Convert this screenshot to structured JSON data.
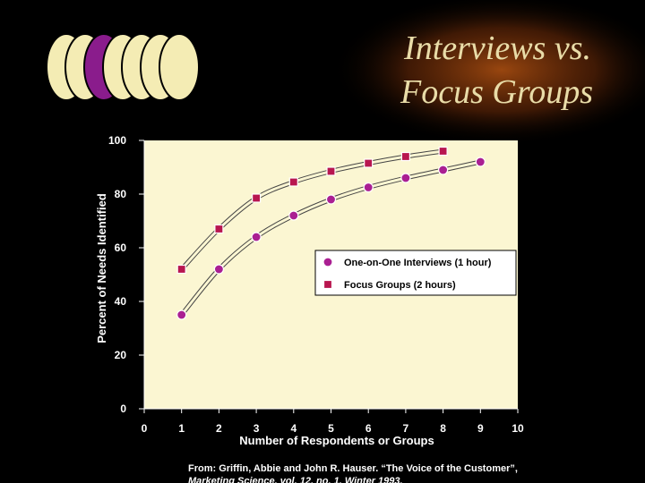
{
  "title_lines": [
    "Interviews vs.",
    "Focus Groups"
  ],
  "chart_data": {
    "type": "line",
    "xlabel": "Number of Respondents or Groups",
    "ylabel": "Percent of Needs Identified",
    "xlim": [
      0,
      10
    ],
    "ylim": [
      0,
      100
    ],
    "x_ticks": [
      "0",
      "1",
      "2",
      "3",
      "4",
      "5",
      "6",
      "7",
      "8",
      "9",
      "10"
    ],
    "y_ticks": [
      "0",
      "20",
      "40",
      "60",
      "80",
      "100"
    ],
    "grid": false,
    "legend": "inside-right",
    "series": [
      {
        "name": "One-on-One Interviews (1 hour)",
        "marker": "circle",
        "color": "#aa1f92",
        "x": [
          1,
          2,
          3,
          4,
          5,
          6,
          7,
          8,
          9
        ],
        "y": [
          35,
          52,
          64,
          72,
          78,
          82.5,
          86,
          89,
          92
        ]
      },
      {
        "name": "Focus Groups (2 hours)",
        "marker": "square",
        "color": "#b8164f",
        "x": [
          1,
          2,
          3,
          4,
          5,
          6,
          7,
          8
        ],
        "y": [
          52,
          67,
          78.5,
          84.5,
          88.5,
          91.5,
          94,
          96
        ]
      }
    ],
    "source_lines": [
      "From: Griffin, Abbie and John R. Hauser. “The Voice of the Customer”,",
      "Marketing Science. vol. 12, no. 1, Winter 1993."
    ]
  },
  "colors": {
    "plot_background": "#fbf6d2",
    "line": "#fbf6d2",
    "legend_background": "#ffffff",
    "logo_fill": "#f4ecb4",
    "logo_accent": "#8a1c8c"
  }
}
